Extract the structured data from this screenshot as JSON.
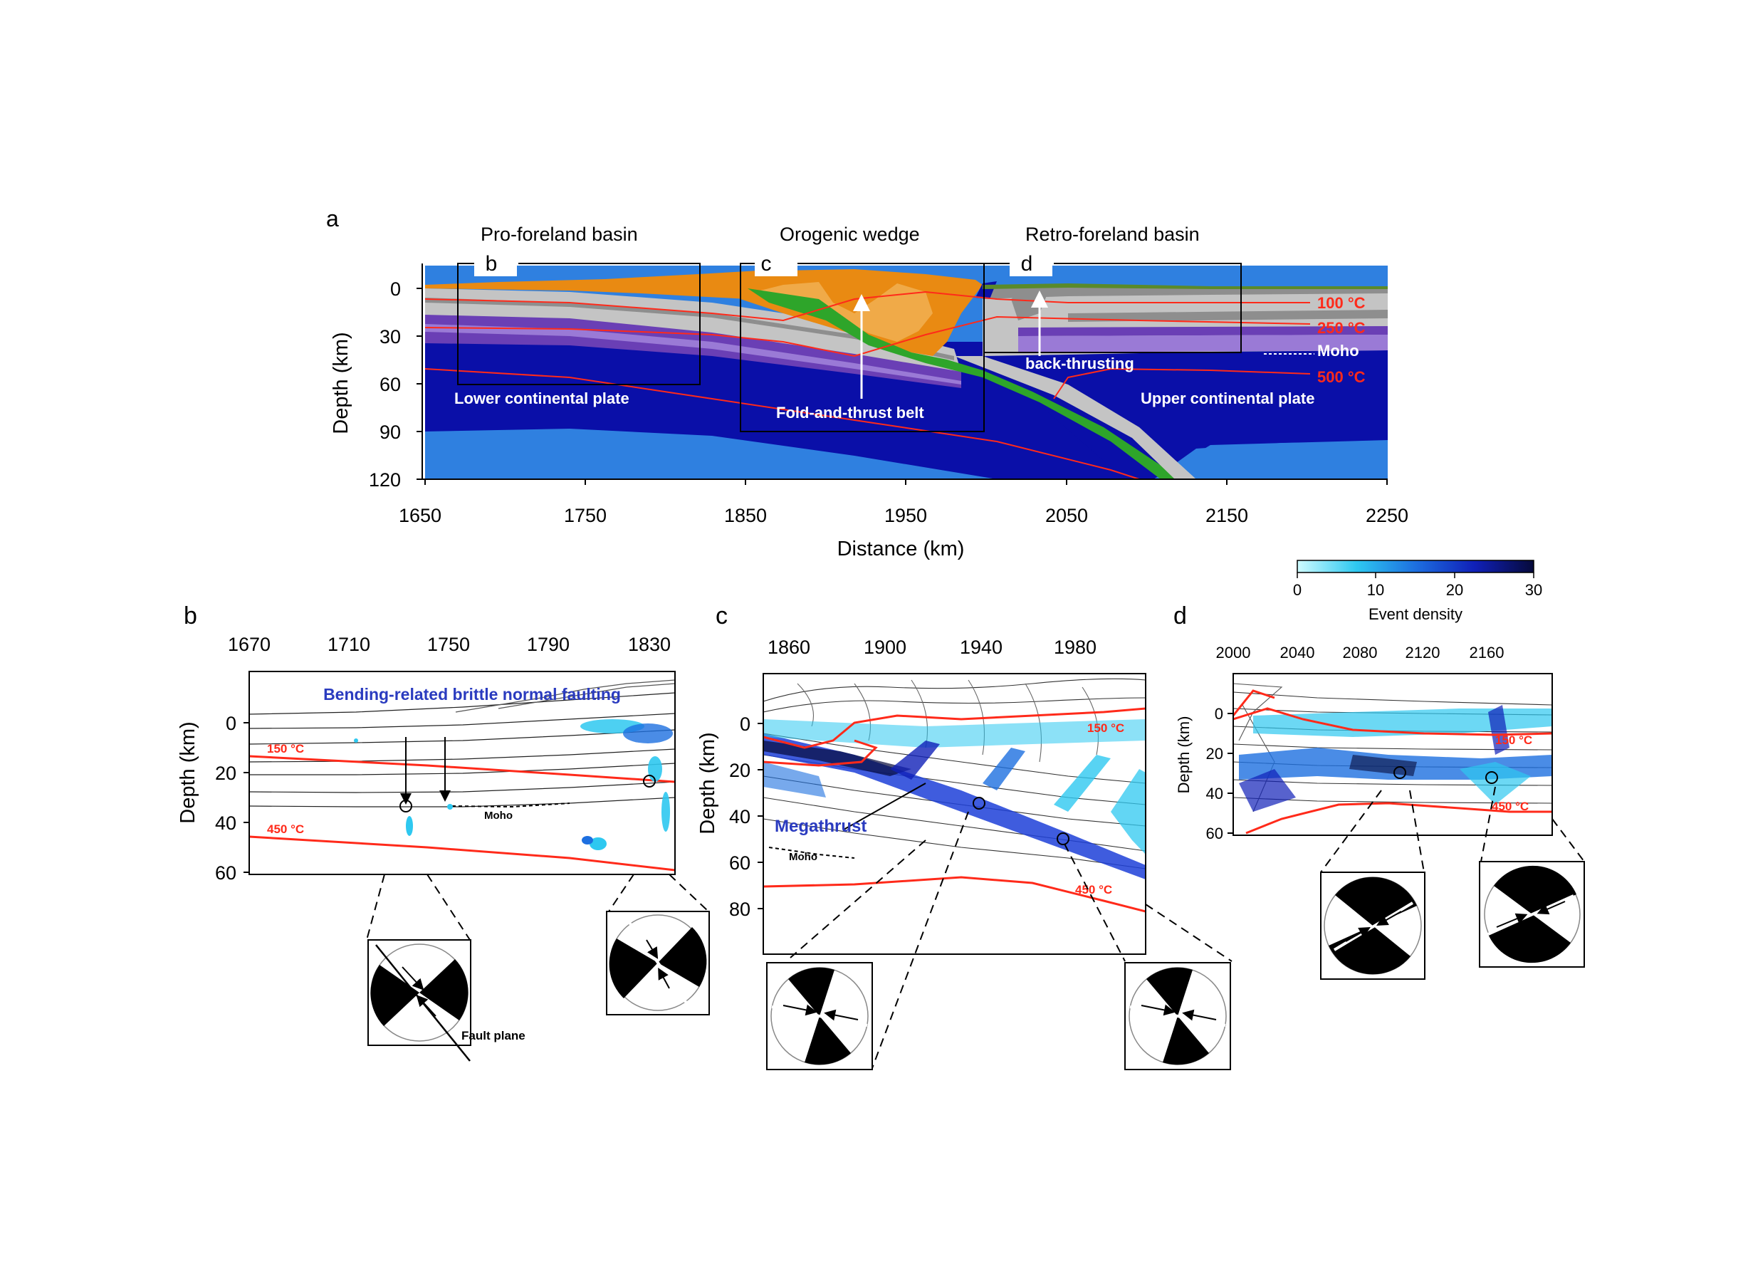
{
  "panel_a": {
    "letter": "a",
    "regions": [
      "Pro-foreland basin",
      "Orogenic wedge",
      "Retro-foreland basin"
    ],
    "box_letters": [
      "b",
      "c",
      "d"
    ],
    "x_axis": {
      "label": "Distance (km)",
      "ticks": [
        "1650",
        "1750",
        "1850",
        "1950",
        "2050",
        "2150",
        "2250"
      ]
    },
    "y_axis": {
      "label": "Depth (km)",
      "ticks": [
        "0",
        "30",
        "60",
        "90",
        "120"
      ]
    },
    "labels": {
      "lower_plate": "Lower continental plate",
      "upper_plate": "Upper continental plate",
      "fold_thrust": "Fold-and-thrust belt",
      "back_thrust": "back-thrusting",
      "moho": "Moho"
    },
    "isotherms": [
      "100 °C",
      "250 °C",
      "500 °C"
    ]
  },
  "colorbar": {
    "label": "Event density",
    "ticks": [
      "0",
      "10",
      "20",
      "30"
    ],
    "colors": [
      "#cffbff",
      "#2ec8f0",
      "#1d6fe0",
      "#1020b8",
      "#060a3a"
    ]
  },
  "panel_b": {
    "letter": "b",
    "x_ticks": [
      "1670",
      "1710",
      "1750",
      "1790",
      "1830"
    ],
    "y_axis": {
      "label": "Depth (km)",
      "ticks": [
        "0",
        "20",
        "40",
        "60"
      ]
    },
    "title": "Bending-related brittle normal faulting",
    "isotherms": [
      "150 °C",
      "450 °C"
    ],
    "moho": "Moho",
    "fault_plane": "Fault plane"
  },
  "panel_c": {
    "letter": "c",
    "x_ticks": [
      "1860",
      "1900",
      "1940",
      "1980"
    ],
    "y_axis": {
      "label": "Depth (km)",
      "ticks": [
        "0",
        "20",
        "40",
        "60",
        "80"
      ]
    },
    "label": "Megathrust",
    "isotherms": [
      "150 °C",
      "450 °C"
    ],
    "moho": "Moho"
  },
  "panel_d": {
    "letter": "d",
    "x_ticks": [
      "2000",
      "2040",
      "2080",
      "2120",
      "2160"
    ],
    "y_axis": {
      "label": "Depth (km)",
      "ticks": [
        "0",
        "20",
        "40",
        "60"
      ]
    },
    "isotherms": [
      "150 °C",
      "450 °C"
    ]
  },
  "colors": {
    "red": "#ff2a1a",
    "deep_blue": "#0a0fa8",
    "light_blue": "#2f80e0",
    "purple": "#6a3fb5",
    "orange": "#e98a12",
    "green": "#2ea52a",
    "gray": "#b9b9b9",
    "label_blue": "#2a3bbf"
  }
}
